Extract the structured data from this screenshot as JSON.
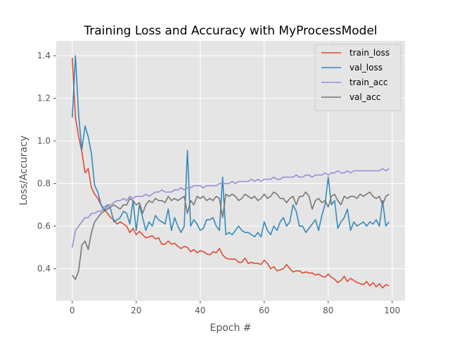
{
  "chart_data": {
    "type": "line",
    "title": "Training Loss and Accuracy with MyProcessModel",
    "xlabel": "Epoch #",
    "ylabel": "Loss/Accuracy",
    "xlim": [
      -5,
      104
    ],
    "ylim": [
      0.25,
      1.47
    ],
    "xticks": [
      0,
      20,
      40,
      60,
      80,
      100
    ],
    "yticks": [
      0.4,
      0.6,
      0.8,
      1.0,
      1.2,
      1.4
    ],
    "xtick_labels": [
      "0",
      "20",
      "40",
      "60",
      "80",
      "100"
    ],
    "ytick_labels": [
      "0.4",
      "0.6",
      "0.8",
      "1.0",
      "1.2",
      "1.4"
    ],
    "grid": true,
    "style": "ggplot",
    "legend_position": "top-right",
    "x": [
      0,
      1,
      2,
      3,
      4,
      5,
      6,
      7,
      8,
      9,
      10,
      11,
      12,
      13,
      14,
      15,
      16,
      17,
      18,
      19,
      20,
      21,
      22,
      23,
      24,
      25,
      26,
      27,
      28,
      29,
      30,
      31,
      32,
      33,
      34,
      35,
      36,
      37,
      38,
      39,
      40,
      41,
      42,
      43,
      44,
      45,
      46,
      47,
      48,
      49,
      50,
      51,
      52,
      53,
      54,
      55,
      56,
      57,
      58,
      59,
      60,
      61,
      62,
      63,
      64,
      65,
      66,
      67,
      68,
      69,
      70,
      71,
      72,
      73,
      74,
      75,
      76,
      77,
      78,
      79,
      80,
      81,
      82,
      83,
      84,
      85,
      86,
      87,
      88,
      89,
      90,
      91,
      92,
      93,
      94,
      95,
      96,
      97,
      98,
      99
    ],
    "series": [
      {
        "name": "train_loss",
        "color": "#E24A33",
        "values": [
          1.39,
          1.11,
          1.02,
          0.95,
          0.85,
          0.87,
          0.78,
          0.75,
          0.73,
          0.7,
          0.68,
          0.66,
          0.64,
          0.63,
          0.61,
          0.62,
          0.61,
          0.6,
          0.57,
          0.59,
          0.56,
          0.575,
          0.56,
          0.545,
          0.55,
          0.555,
          0.54,
          0.545,
          0.515,
          0.515,
          0.53,
          0.515,
          0.52,
          0.505,
          0.495,
          0.505,
          0.5,
          0.48,
          0.49,
          0.475,
          0.485,
          0.48,
          0.47,
          0.465,
          0.48,
          0.475,
          0.495,
          0.465,
          0.45,
          0.445,
          0.445,
          0.445,
          0.43,
          0.43,
          0.45,
          0.425,
          0.43,
          0.425,
          0.425,
          0.42,
          0.44,
          0.425,
          0.4,
          0.41,
          0.39,
          0.395,
          0.4,
          0.42,
          0.4,
          0.385,
          0.39,
          0.39,
          0.38,
          0.385,
          0.38,
          0.38,
          0.37,
          0.375,
          0.365,
          0.36,
          0.375,
          0.36,
          0.35,
          0.335,
          0.345,
          0.365,
          0.34,
          0.355,
          0.345,
          0.335,
          0.33,
          0.325,
          0.34,
          0.32,
          0.335,
          0.315,
          0.33,
          0.31,
          0.325,
          0.32
        ]
      },
      {
        "name": "val_loss",
        "color": "#348ABD",
        "values": [
          1.11,
          1.4,
          1.12,
          0.96,
          1.07,
          1.02,
          0.94,
          0.79,
          0.76,
          0.7,
          0.67,
          0.7,
          0.68,
          0.62,
          0.63,
          0.64,
          0.67,
          0.66,
          0.61,
          0.72,
          0.58,
          0.7,
          0.64,
          0.58,
          0.62,
          0.6,
          0.65,
          0.63,
          0.62,
          0.61,
          0.68,
          0.58,
          0.64,
          0.6,
          0.57,
          0.6,
          0.955,
          0.6,
          0.63,
          0.61,
          0.58,
          0.59,
          0.63,
          0.63,
          0.64,
          0.6,
          0.58,
          0.83,
          0.56,
          0.57,
          0.56,
          0.58,
          0.6,
          0.58,
          0.57,
          0.57,
          0.56,
          0.55,
          0.57,
          0.55,
          0.62,
          0.58,
          0.56,
          0.6,
          0.58,
          0.62,
          0.64,
          0.6,
          0.62,
          0.7,
          0.67,
          0.6,
          0.6,
          0.57,
          0.59,
          0.61,
          0.63,
          0.58,
          0.65,
          0.7,
          0.83,
          0.7,
          0.72,
          0.59,
          0.62,
          0.64,
          0.68,
          0.58,
          0.62,
          0.6,
          0.61,
          0.62,
          0.6,
          0.62,
          0.61,
          0.63,
          0.6,
          0.72,
          0.6,
          0.62
        ]
      },
      {
        "name": "train_acc",
        "color": "#988ED5",
        "values": [
          0.5,
          0.58,
          0.6,
          0.62,
          0.64,
          0.64,
          0.66,
          0.66,
          0.67,
          0.67,
          0.69,
          0.7,
          0.7,
          0.71,
          0.72,
          0.72,
          0.73,
          0.72,
          0.74,
          0.73,
          0.74,
          0.74,
          0.74,
          0.75,
          0.74,
          0.75,
          0.76,
          0.76,
          0.77,
          0.76,
          0.76,
          0.76,
          0.77,
          0.77,
          0.78,
          0.77,
          0.78,
          0.78,
          0.79,
          0.79,
          0.79,
          0.78,
          0.79,
          0.79,
          0.79,
          0.79,
          0.8,
          0.8,
          0.8,
          0.8,
          0.81,
          0.8,
          0.81,
          0.81,
          0.81,
          0.81,
          0.82,
          0.81,
          0.82,
          0.81,
          0.82,
          0.82,
          0.82,
          0.83,
          0.82,
          0.82,
          0.83,
          0.83,
          0.83,
          0.83,
          0.84,
          0.83,
          0.83,
          0.84,
          0.84,
          0.83,
          0.84,
          0.84,
          0.84,
          0.85,
          0.84,
          0.85,
          0.85,
          0.86,
          0.85,
          0.85,
          0.86,
          0.85,
          0.86,
          0.86,
          0.86,
          0.86,
          0.86,
          0.86,
          0.86,
          0.86,
          0.86,
          0.87,
          0.86,
          0.87
        ]
      },
      {
        "name": "val_acc",
        "color": "#777777",
        "values": [
          0.37,
          0.35,
          0.39,
          0.51,
          0.53,
          0.49,
          0.57,
          0.62,
          0.64,
          0.66,
          0.67,
          0.68,
          0.69,
          0.7,
          0.69,
          0.68,
          0.7,
          0.7,
          0.73,
          0.72,
          0.7,
          0.71,
          0.66,
          0.7,
          0.72,
          0.71,
          0.73,
          0.72,
          0.72,
          0.71,
          0.74,
          0.72,
          0.73,
          0.72,
          0.73,
          0.74,
          0.66,
          0.72,
          0.7,
          0.74,
          0.73,
          0.74,
          0.72,
          0.73,
          0.72,
          0.74,
          0.73,
          0.64,
          0.75,
          0.74,
          0.75,
          0.74,
          0.72,
          0.73,
          0.75,
          0.74,
          0.73,
          0.74,
          0.72,
          0.73,
          0.75,
          0.73,
          0.74,
          0.76,
          0.75,
          0.73,
          0.73,
          0.71,
          0.73,
          0.74,
          0.7,
          0.74,
          0.74,
          0.76,
          0.74,
          0.68,
          0.72,
          0.73,
          0.71,
          0.72,
          0.69,
          0.74,
          0.75,
          0.72,
          0.7,
          0.74,
          0.73,
          0.74,
          0.74,
          0.73,
          0.75,
          0.74,
          0.75,
          0.76,
          0.74,
          0.73,
          0.74,
          0.7,
          0.74,
          0.75
        ]
      }
    ]
  }
}
